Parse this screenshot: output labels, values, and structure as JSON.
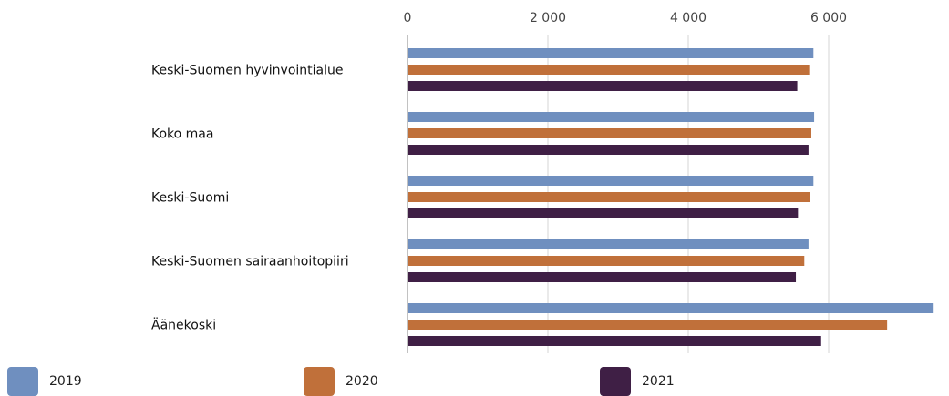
{
  "chart_data": {
    "type": "bar",
    "orientation": "horizontal",
    "categories": [
      "Keski-Suomen hyvinvointialue",
      "Koko maa",
      "Keski-Suomi",
      "Keski-Suomen sairaanhoitopiiri",
      "Äänekoski"
    ],
    "series": [
      {
        "name": "2019",
        "color": "#6f8fbf",
        "values": [
          5770,
          5780,
          5770,
          5700,
          7470
        ]
      },
      {
        "name": "2020",
        "color": "#c0703a",
        "values": [
          5710,
          5740,
          5720,
          5640,
          6820
        ]
      },
      {
        "name": "2021",
        "color": "#3f1f45",
        "values": [
          5540,
          5700,
          5550,
          5520,
          5880
        ]
      }
    ],
    "x_ticks": [
      "0",
      "2 000",
      "4 000",
      "6 000"
    ],
    "x_tick_values": [
      0,
      2000,
      4000,
      6000
    ],
    "xlim": [
      0,
      7500
    ],
    "grid": true,
    "legend_position": "bottom",
    "title": "",
    "xlabel": "",
    "ylabel": ""
  }
}
